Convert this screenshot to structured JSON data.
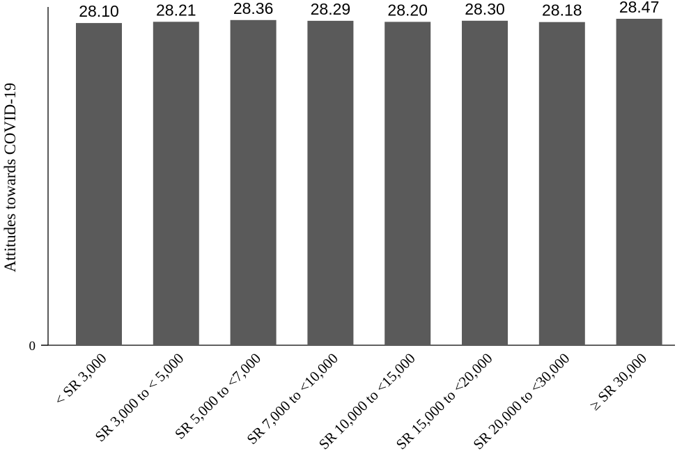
{
  "chart_data": {
    "type": "bar",
    "ylabel": "Attitudes towards COVID-19",
    "ytick_label": "0",
    "ylim": [
      0,
      29.5
    ],
    "grid": false,
    "bar_color": "#5a5a5a",
    "categories": [
      "< SR 3,000",
      "SR 3,000 to < 5,000",
      "SR 5,000 to <7,000",
      "SR 7,000 to <10,000",
      "SR 10,000 to <15,000",
      "SR 15,000 to <20,000",
      "SR 20,000 to <30,000",
      "≥ SR 30,000"
    ],
    "values": [
      28.1,
      28.21,
      28.36,
      28.29,
      28.2,
      28.3,
      28.18,
      28.47
    ],
    "value_labels": [
      "28.10",
      "28.21",
      "28.36",
      "28.29",
      "28.20",
      "28.30",
      "28.18",
      "28.47"
    ]
  }
}
